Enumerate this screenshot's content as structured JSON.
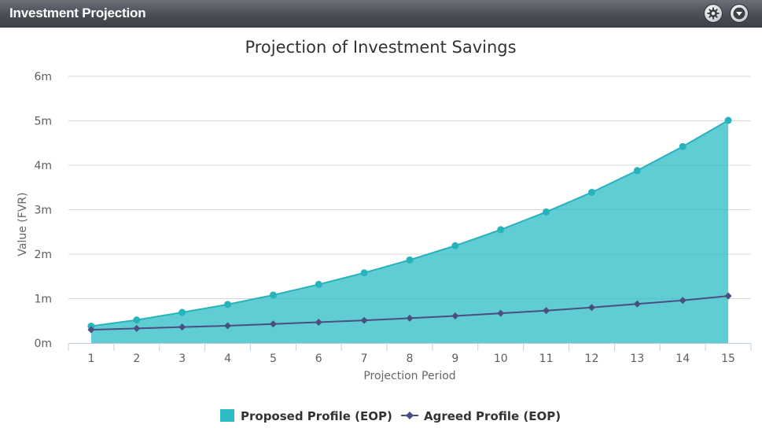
{
  "window": {
    "title": "Investment Projection",
    "settings_icon": "gear-icon",
    "menu_icon": "chevron-down-icon"
  },
  "colors": {
    "proposed": "#2bbcc6",
    "proposed_line": "#27b3bb",
    "agreed": "#4a4e80"
  },
  "chart_data": {
    "type": "area",
    "title": "Projection of Investment Savings",
    "xlabel": "Projection Period",
    "ylabel": "Value (FVR)",
    "x": [
      1,
      2,
      3,
      4,
      5,
      6,
      7,
      8,
      9,
      10,
      11,
      12,
      13,
      14,
      15
    ],
    "ylim": [
      0,
      6000000
    ],
    "yticks": [
      0,
      1000000,
      2000000,
      3000000,
      4000000,
      5000000,
      6000000
    ],
    "ytick_labels": [
      "0m",
      "1m",
      "2m",
      "3m",
      "4m",
      "5m",
      "6m"
    ],
    "grid": true,
    "legend_position": "bottom-center",
    "series": [
      {
        "name": "Proposed Profile (EOP)",
        "type": "area",
        "marker": "circle",
        "values": [
          380000,
          520000,
          690000,
          870000,
          1080000,
          1320000,
          1580000,
          1870000,
          2190000,
          2550000,
          2950000,
          3390000,
          3880000,
          4420000,
          5010000
        ]
      },
      {
        "name": "Agreed Profile (EOP)",
        "type": "line",
        "marker": "diamond",
        "values": [
          300000,
          330000,
          360000,
          390000,
          430000,
          470000,
          510000,
          560000,
          610000,
          670000,
          730000,
          800000,
          880000,
          960000,
          1060000
        ]
      }
    ]
  }
}
